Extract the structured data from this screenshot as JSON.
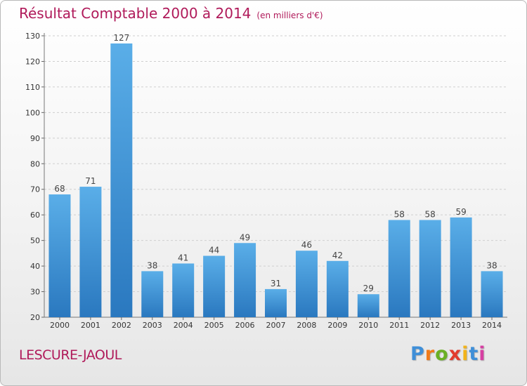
{
  "header": {
    "title": "Résultat Comptable 2000 à 2014",
    "unit_note": "(en milliers d'€)"
  },
  "footer": {
    "commune": "LESCURE-JAOUL",
    "logo_letters": [
      "P",
      "r",
      "o",
      "x",
      "i",
      "t",
      "i"
    ],
    "logo_colors": [
      "#3f8fd8",
      "#f07a1a",
      "#6ab023",
      "#e23b2e",
      "#f2b31b",
      "#3f8fd8",
      "#d63fa2"
    ]
  },
  "colors": {
    "title": "#b01a5a",
    "bar_light": "#5aaee8",
    "bar_dark": "#2a78bf",
    "grid": "#cfcfcf"
  },
  "chart_data": {
    "type": "bar",
    "categories": [
      "2000",
      "2001",
      "2002",
      "2003",
      "2004",
      "2005",
      "2006",
      "2007",
      "2008",
      "2009",
      "2010",
      "2011",
      "2012",
      "2013",
      "2014"
    ],
    "values": [
      68,
      71,
      127,
      38,
      41,
      44,
      49,
      31,
      46,
      42,
      29,
      58,
      58,
      59,
      38
    ],
    "yticks": [
      20,
      30,
      40,
      50,
      60,
      70,
      80,
      90,
      100,
      110,
      120,
      130
    ],
    "ylim": [
      20,
      130
    ],
    "grid": true,
    "xlabel": "",
    "ylabel": ""
  }
}
